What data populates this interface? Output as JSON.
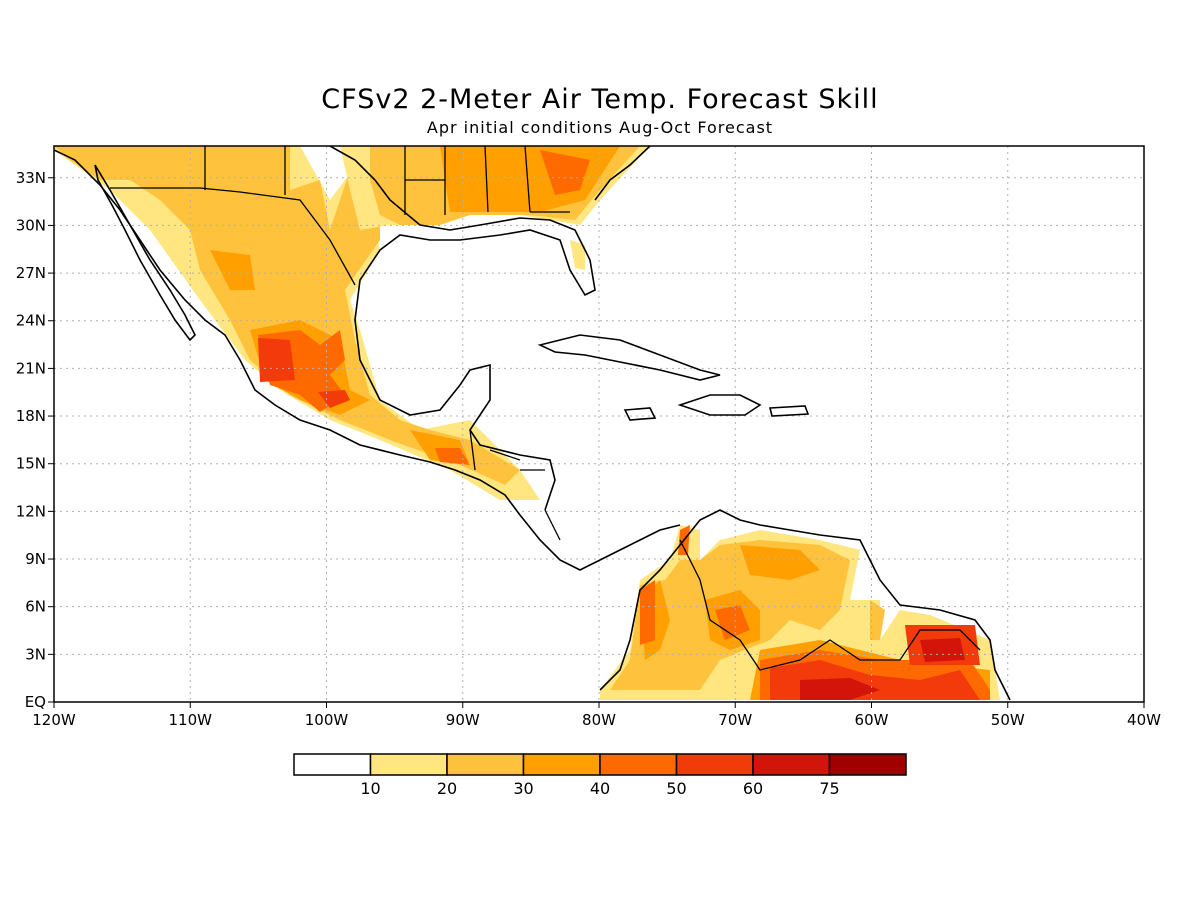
{
  "title": "CFSv2 2-Meter Air Temp. Forecast Skill",
  "subtitle": "Apr initial conditions  Aug-Oct Forecast",
  "lon_labels": [
    "120W",
    "110W",
    "100W",
    "90W",
    "80W",
    "70W",
    "60W",
    "50W",
    "40W"
  ],
  "lat_labels": [
    "EQ",
    "3N",
    "6N",
    "9N",
    "12N",
    "15N",
    "18N",
    "21N",
    "24N",
    "27N",
    "30N",
    "33N"
  ],
  "colorbar": {
    "labels": [
      "10",
      "20",
      "30",
      "40",
      "50",
      "60",
      "75"
    ],
    "colors": [
      "#ffffff",
      "#ffe680",
      "#ffc23c",
      "#ffa000",
      "#ff6a00",
      "#f23a0a",
      "#d2140a",
      "#a00000"
    ]
  },
  "chart_data": {
    "type": "heatmap",
    "variable": "2-meter air temperature forecast skill",
    "lon_range": [
      -120,
      -40
    ],
    "lat_range": [
      0,
      35
    ],
    "grid": true,
    "legend_position": "bottom",
    "contour_levels": [
      10,
      20,
      30,
      40,
      50,
      60,
      75
    ],
    "regions": [
      {
        "lon": -117,
        "lat": 33,
        "level": 30
      },
      {
        "lon": -112,
        "lat": 32,
        "level": 30
      },
      {
        "lon": -106,
        "lat": 29,
        "level": 30
      },
      {
        "lon": -106,
        "lat": 27,
        "level": 40
      },
      {
        "lon": -104,
        "lat": 28,
        "level": 30
      },
      {
        "lon": -100,
        "lat": 26,
        "level": 30
      },
      {
        "lon": -102,
        "lat": 21,
        "level": 50
      },
      {
        "lon": -104,
        "lat": 22,
        "level": 60
      },
      {
        "lon": -99,
        "lat": 19,
        "level": 50
      },
      {
        "lon": -97,
        "lat": 20,
        "level": 40
      },
      {
        "lon": -92,
        "lat": 15,
        "level": 50
      },
      {
        "lon": -89,
        "lat": 15,
        "level": 30
      },
      {
        "lon": -91,
        "lat": 19,
        "level": 20
      },
      {
        "lon": -95,
        "lat": 31,
        "level": 20
      },
      {
        "lon": -88,
        "lat": 33,
        "level": 30
      },
      {
        "lon": -84,
        "lat": 34,
        "level": 40
      },
      {
        "lon": -77,
        "lat": 6,
        "level": 50
      },
      {
        "lon": -76,
        "lat": 4,
        "level": 10
      },
      {
        "lon": -73,
        "lat": 3,
        "level": 20
      },
      {
        "lon": -71,
        "lat": 6,
        "level": 40
      },
      {
        "lon": -67,
        "lat": 9,
        "level": 40
      },
      {
        "lon": -65,
        "lat": 7,
        "level": 30
      },
      {
        "lon": -66,
        "lat": 1,
        "level": 60
      },
      {
        "lon": -61,
        "lat": 1,
        "level": 60
      },
      {
        "lon": -55,
        "lat": 3,
        "level": 60
      },
      {
        "lon": -54,
        "lat": 2,
        "level": 60
      },
      {
        "lon": -59,
        "lat": 4,
        "level": 30
      }
    ]
  }
}
